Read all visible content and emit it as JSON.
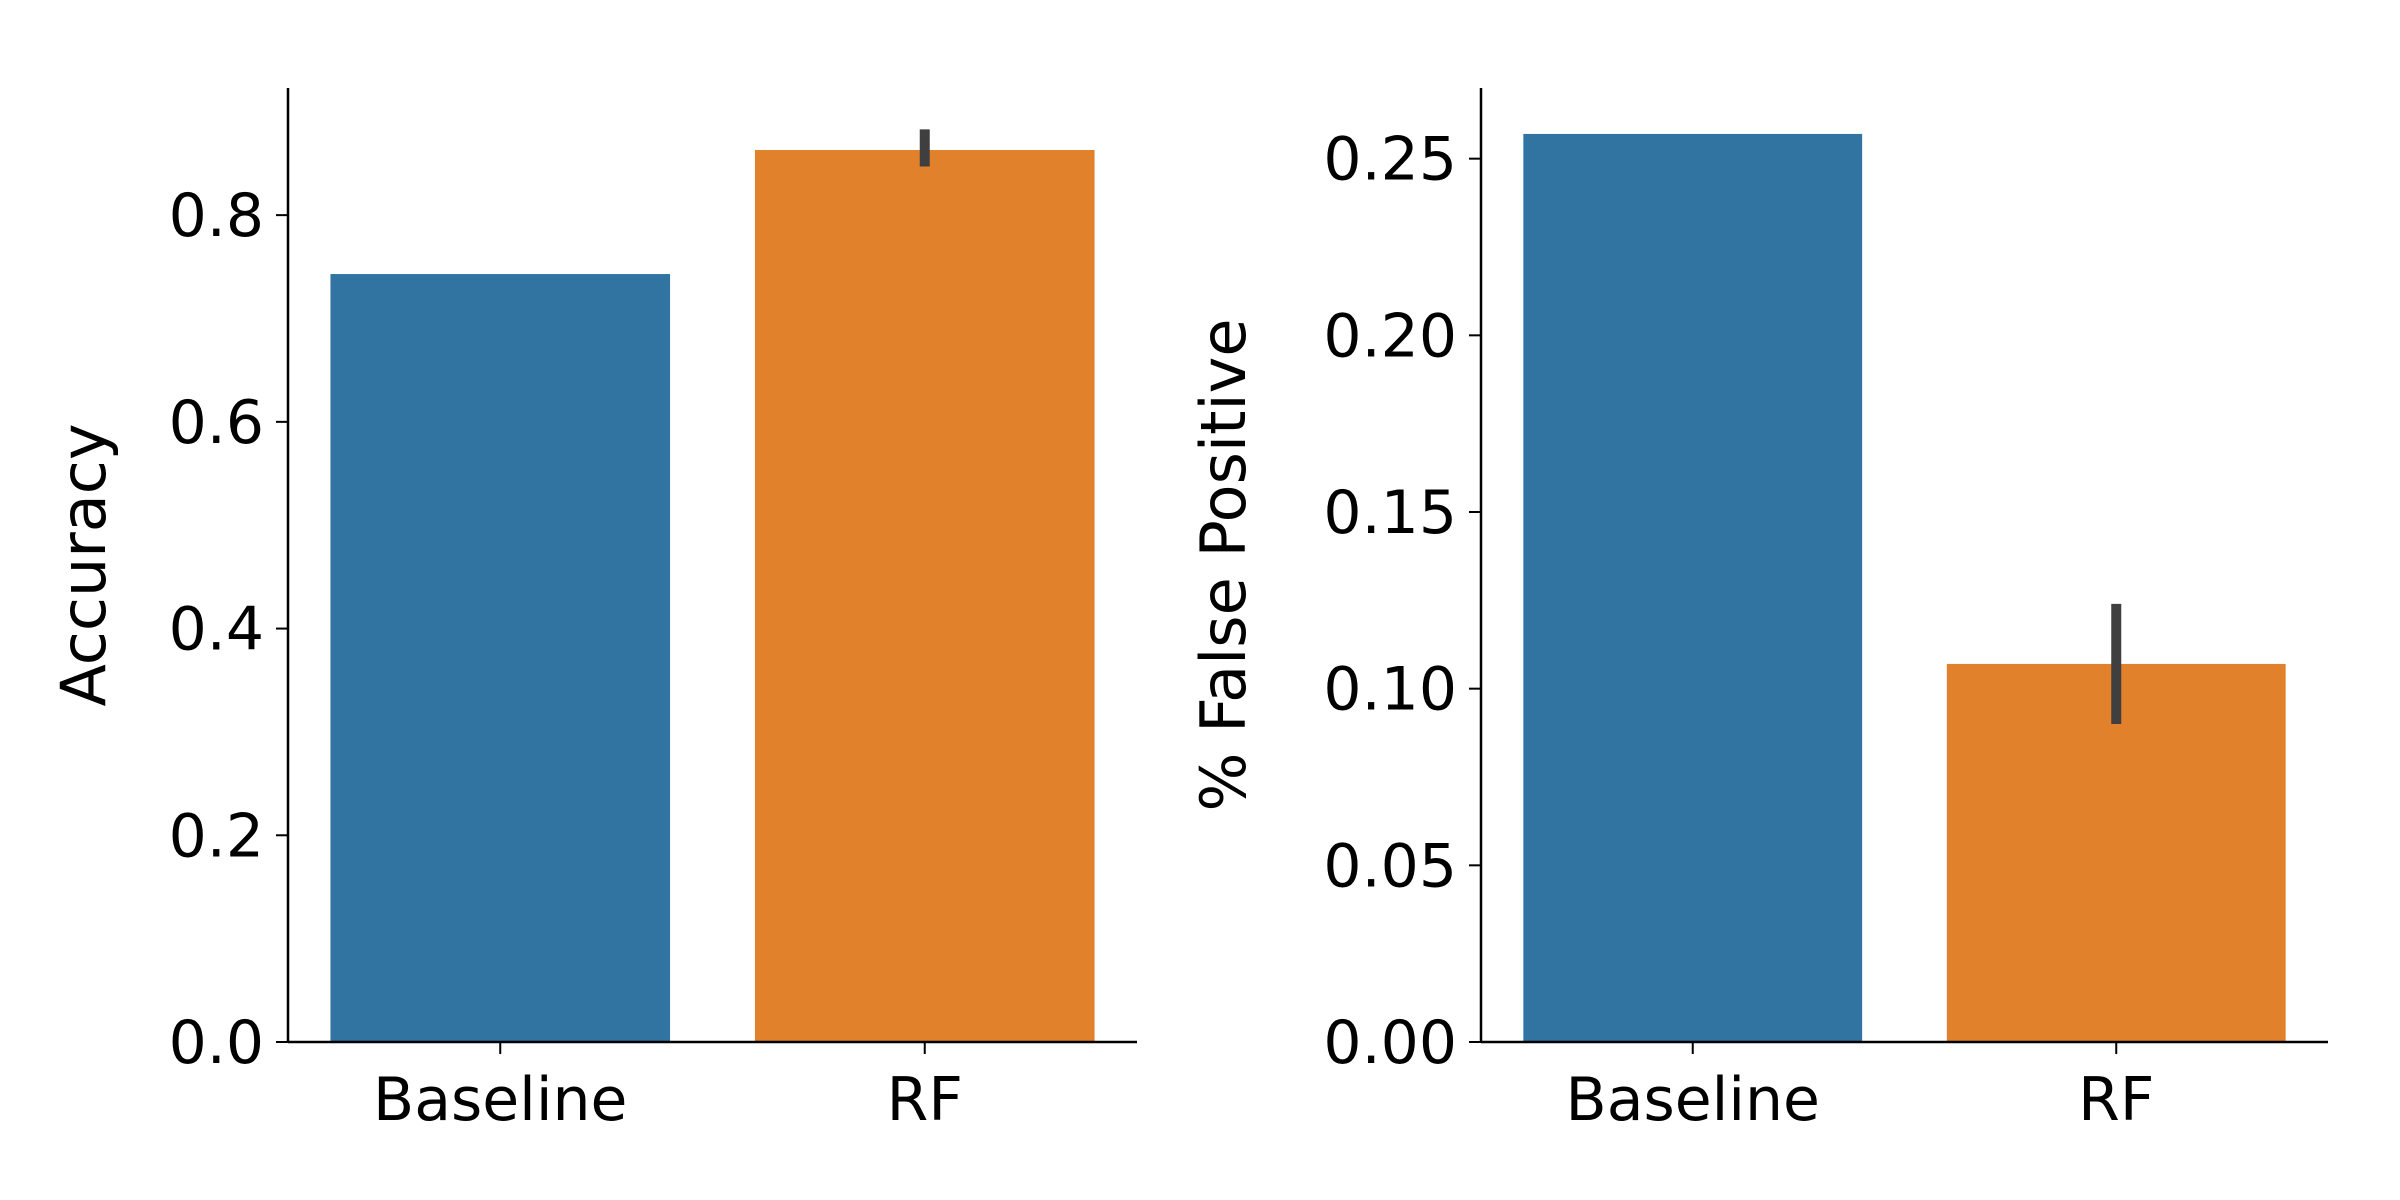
{
  "chart_data": [
    {
      "type": "bar",
      "categories": [
        "Baseline",
        "RF"
      ],
      "values": [
        0.743,
        0.863
      ],
      "error_bars": [
        null,
        [
          0.847,
          0.883
        ]
      ],
      "colors": [
        "#3274a1",
        "#e1812c"
      ],
      "errorbar_color": "#3f3f3f",
      "xlabel": "",
      "ylabel": "Accuracy",
      "ylim": [
        0,
        0.923
      ],
      "yticks": [
        0.0,
        0.2,
        0.4,
        0.6,
        0.8
      ],
      "ytick_labels": [
        "0.0",
        "0.2",
        "0.4",
        "0.6",
        "0.8"
      ],
      "grid": false
    },
    {
      "type": "bar",
      "categories": [
        "Baseline",
        "RF"
      ],
      "values": [
        0.257,
        0.107
      ],
      "error_bars": [
        null,
        [
          0.09,
          0.124
        ]
      ],
      "colors": [
        "#3274a1",
        "#e1812c"
      ],
      "errorbar_color": "#3f3f3f",
      "xlabel": "",
      "ylabel": "% False Positive",
      "ylim": [
        0,
        0.27
      ],
      "yticks": [
        0.0,
        0.05,
        0.1,
        0.15,
        0.2,
        0.25
      ],
      "ytick_labels": [
        "0.00",
        "0.05",
        "0.10",
        "0.15",
        "0.20",
        "0.25"
      ],
      "grid": false
    }
  ]
}
